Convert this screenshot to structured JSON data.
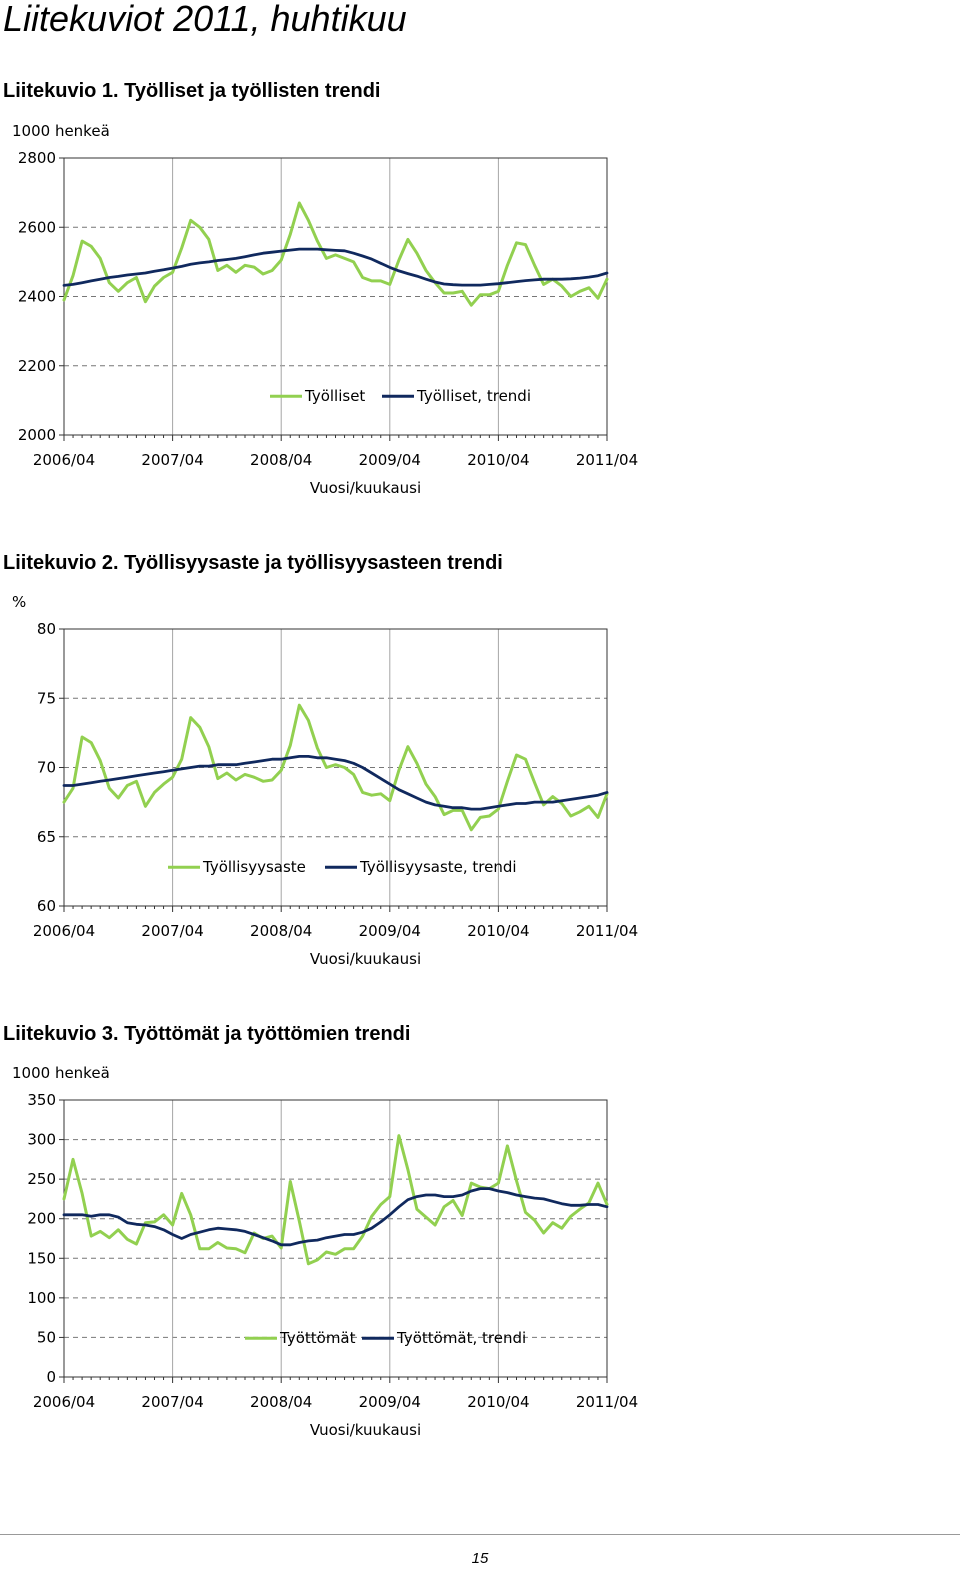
{
  "page": {
    "title": "Liitekuviot 2011, huhtikuu",
    "page_number": "15"
  },
  "captions": [
    "Liitekuvio 1. Työlliset ja työllisten trendi",
    "Liitekuvio 2. Työllisyysaste ja työllisyysasteen trendi",
    "Liitekuvio 3. Työttömät ja työttömien trendi"
  ],
  "colors": {
    "series_green": "#92d050",
    "series_navy": "#10295e",
    "grid": "#777777",
    "axis": "#333333"
  },
  "chart_data": [
    {
      "type": "line",
      "unit_label": "1000 henkeä",
      "xlabel": "Vuosi/kuukausi",
      "ylabel": "",
      "x_start": "2006/04",
      "x_ticks": [
        "2006/04",
        "2007/04",
        "2008/04",
        "2009/04",
        "2010/04",
        "2011/04"
      ],
      "y_ticks": [
        "2000",
        "2200",
        "2400",
        "2600",
        "2800"
      ],
      "ylim": [
        2000,
        2800
      ],
      "grid": true,
      "legend": "inside-lower-right",
      "series": [
        {
          "name": "Työlliset",
          "color": "#92d050",
          "values": [
            2390,
            2460,
            2560,
            2545,
            2510,
            2440,
            2415,
            2440,
            2455,
            2385,
            2430,
            2455,
            2470,
            2540,
            2620,
            2600,
            2565,
            2475,
            2490,
            2470,
            2490,
            2485,
            2465,
            2475,
            2505,
            2580,
            2670,
            2620,
            2560,
            2510,
            2520,
            2510,
            2500,
            2455,
            2445,
            2445,
            2435,
            2505,
            2565,
            2525,
            2475,
            2440,
            2410,
            2410,
            2415,
            2375,
            2405,
            2405,
            2415,
            2490,
            2555,
            2550,
            2490,
            2435,
            2450,
            2430,
            2400,
            2415,
            2425,
            2395,
            2450
          ]
        },
        {
          "name": "Työlliset, trendi",
          "color": "#10295e",
          "values": [
            2432,
            2435,
            2440,
            2445,
            2450,
            2455,
            2458,
            2462,
            2465,
            2468,
            2473,
            2477,
            2482,
            2487,
            2493,
            2497,
            2500,
            2504,
            2507,
            2510,
            2515,
            2520,
            2525,
            2528,
            2531,
            2534,
            2537,
            2537,
            2537,
            2535,
            2533,
            2532,
            2525,
            2517,
            2508,
            2496,
            2484,
            2474,
            2466,
            2459,
            2450,
            2442,
            2436,
            2434,
            2433,
            2433,
            2433,
            2435,
            2437,
            2440,
            2443,
            2446,
            2448,
            2450,
            2450,
            2450,
            2451,
            2453,
            2456,
            2460,
            2468
          ]
        }
      ]
    },
    {
      "type": "line",
      "unit_label": "%",
      "xlabel": "Vuosi/kuukausi",
      "ylabel": "",
      "x_start": "2006/04",
      "x_ticks": [
        "2006/04",
        "2007/04",
        "2008/04",
        "2009/04",
        "2010/04",
        "2011/04"
      ],
      "y_ticks": [
        "60",
        "65",
        "70",
        "75",
        "80"
      ],
      "ylim": [
        60,
        80
      ],
      "grid": true,
      "legend": "inside-lower-right",
      "series": [
        {
          "name": "Työllisyysaste",
          "color": "#92d050",
          "values": [
            67.5,
            68.5,
            72.2,
            71.8,
            70.5,
            68.5,
            67.8,
            68.7,
            69.0,
            67.2,
            68.2,
            68.8,
            69.3,
            70.6,
            73.6,
            72.9,
            71.5,
            69.2,
            69.6,
            69.1,
            69.5,
            69.3,
            69.0,
            69.1,
            69.8,
            71.6,
            74.5,
            73.4,
            71.4,
            70.0,
            70.2,
            70.0,
            69.5,
            68.2,
            68.0,
            68.1,
            67.6,
            69.8,
            71.5,
            70.3,
            68.8,
            67.9,
            66.6,
            66.9,
            66.9,
            65.5,
            66.4,
            66.5,
            67.0,
            69.0,
            70.9,
            70.6,
            68.9,
            67.3,
            67.9,
            67.4,
            66.5,
            66.8,
            67.2,
            66.4,
            68.1
          ]
        },
        {
          "name": "Työllisyysaste, trendi",
          "color": "#10295e",
          "values": [
            68.7,
            68.7,
            68.8,
            68.9,
            69.0,
            69.1,
            69.2,
            69.3,
            69.4,
            69.5,
            69.6,
            69.7,
            69.8,
            69.9,
            70.0,
            70.1,
            70.1,
            70.2,
            70.2,
            70.2,
            70.3,
            70.4,
            70.5,
            70.6,
            70.6,
            70.7,
            70.8,
            70.8,
            70.7,
            70.7,
            70.6,
            70.5,
            70.3,
            70.0,
            69.6,
            69.2,
            68.8,
            68.4,
            68.1,
            67.8,
            67.5,
            67.3,
            67.2,
            67.1,
            67.1,
            67.0,
            67.0,
            67.1,
            67.2,
            67.3,
            67.4,
            67.4,
            67.5,
            67.5,
            67.5,
            67.6,
            67.7,
            67.8,
            67.9,
            68.0,
            68.2
          ]
        }
      ]
    },
    {
      "type": "line",
      "unit_label": "1000 henkeä",
      "xlabel": "Vuosi/kuukausi",
      "ylabel": "",
      "x_start": "2006/04",
      "x_ticks": [
        "2006/04",
        "2007/04",
        "2008/04",
        "2009/04",
        "2010/04",
        "2011/04"
      ],
      "y_ticks": [
        "0",
        "50",
        "100",
        "150",
        "200",
        "250",
        "300",
        "350"
      ],
      "ylim": [
        0,
        350
      ],
      "grid": true,
      "legend": "inside-lower-right",
      "series": [
        {
          "name": "Työttömät",
          "color": "#92d050",
          "values": [
            225,
            275,
            232,
            178,
            184,
            176,
            186,
            174,
            168,
            195,
            196,
            205,
            192,
            232,
            205,
            162,
            162,
            170,
            163,
            162,
            157,
            182,
            175,
            178,
            163,
            247,
            197,
            143,
            148,
            158,
            155,
            162,
            162,
            178,
            203,
            218,
            228,
            305,
            262,
            212,
            202,
            192,
            215,
            223,
            204,
            245,
            240,
            238,
            245,
            292,
            248,
            208,
            198,
            182,
            195,
            188,
            203,
            212,
            220,
            245,
            218
          ]
        },
        {
          "name": "Työttömät, trendi",
          "color": "#10295e",
          "values": [
            205,
            205,
            205,
            203,
            205,
            205,
            202,
            195,
            193,
            192,
            190,
            186,
            180,
            175,
            180,
            183,
            186,
            188,
            187,
            186,
            184,
            180,
            176,
            172,
            167,
            167,
            170,
            172,
            173,
            176,
            178,
            180,
            180,
            183,
            188,
            196,
            205,
            215,
            224,
            228,
            230,
            230,
            228,
            228,
            230,
            235,
            238,
            238,
            235,
            233,
            230,
            228,
            226,
            225,
            222,
            219,
            217,
            217,
            218,
            218,
            215
          ]
        }
      ]
    }
  ]
}
